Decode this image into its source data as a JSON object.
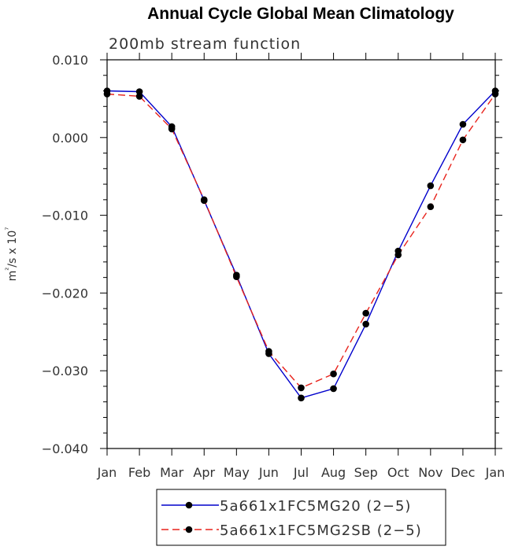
{
  "chart_data": {
    "type": "line",
    "title": "Annual Cycle Global Mean Climatology",
    "subtitle": "200mb stream function",
    "ylabel": "m²/s x 10⁷",
    "xlabel": "",
    "categories": [
      "Jan",
      "Feb",
      "Mar",
      "Apr",
      "May",
      "Jun",
      "Jul",
      "Aug",
      "Sep",
      "Oct",
      "Nov",
      "Dec",
      "Jan"
    ],
    "ylim": [
      -0.04,
      0.01
    ],
    "yticks": [
      0.01,
      0.0,
      -0.01,
      -0.02,
      -0.03,
      -0.04
    ],
    "ytick_labels": [
      "0.010",
      "0.000",
      "−0.010",
      "−0.020",
      "−0.030",
      "−0.040"
    ],
    "legend_position": "bottom-center",
    "series": [
      {
        "name": "5a661x1FC5MG20 (2−5)",
        "color": "#0000cc",
        "dash": "solid",
        "values": [
          0.006,
          0.0059,
          0.0014,
          -0.0081,
          -0.0177,
          -0.0278,
          -0.0335,
          -0.0323,
          -0.024,
          -0.0146,
          -0.0062,
          0.0017,
          0.006
        ]
      },
      {
        "name": "5a661x1FC5MG2SB (2−5)",
        "color": "#e8231c",
        "dash": "dashed",
        "values": [
          0.0056,
          0.0053,
          0.0011,
          -0.008,
          -0.0179,
          -0.0275,
          -0.0322,
          -0.0304,
          -0.0226,
          -0.0151,
          -0.0089,
          -0.0003,
          0.0056
        ]
      }
    ]
  }
}
